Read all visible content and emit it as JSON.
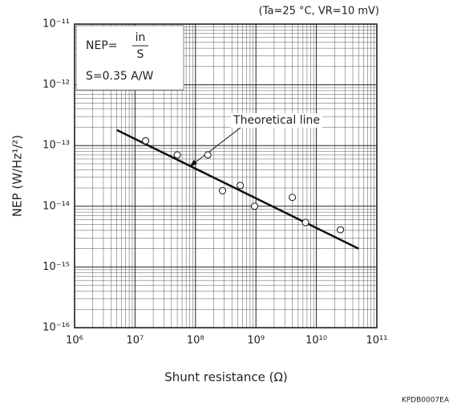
{
  "chart_data": {
    "type": "scatter",
    "x_scale": "log",
    "y_scale": "log",
    "grid": true,
    "minor_grid": true,
    "xlabel": "Shunt resistance (Ω)",
    "ylabel": "NEP (W/Hz¹/²)",
    "conditions": "(Ta=25 °C, VR=10 mV)",
    "formula": {
      "lhs": "NEP=",
      "numerator": "in",
      "denominator": "S",
      "sensitivity": "S=0.35 A/W"
    },
    "code": "KPDB0007EA",
    "xlim": [
      1000000,
      100000000000
    ],
    "ylim": [
      1e-16,
      1e-11
    ],
    "xticks": [
      {
        "value": 1000000,
        "label": "10⁶"
      },
      {
        "value": 10000000,
        "label": "10⁷"
      },
      {
        "value": 100000000,
        "label": "10⁸"
      },
      {
        "value": 1000000000,
        "label": "10⁹"
      },
      {
        "value": 10000000000,
        "label": "10¹⁰"
      },
      {
        "value": 100000000000,
        "label": "10¹¹"
      }
    ],
    "yticks": [
      {
        "value": 1e-16,
        "label": "10⁻¹⁶"
      },
      {
        "value": 1e-15,
        "label": "10⁻¹⁵"
      },
      {
        "value": 1e-14,
        "label": "10⁻¹⁴"
      },
      {
        "value": 1e-13,
        "label": "10⁻¹³"
      },
      {
        "value": 1e-12,
        "label": "10⁻¹²"
      },
      {
        "value": 1e-11,
        "label": "10⁻¹¹"
      }
    ],
    "x": [
      15000000,
      50000000,
      160000000,
      280000000,
      550000000,
      950000000,
      4000000000,
      6600000000,
      25000000000
    ],
    "values": [
      1.2e-13,
      7e-14,
      7e-14,
      1.8e-14,
      2.2e-14,
      1e-14,
      1.4e-14,
      5.4e-15,
      4.1e-15
    ],
    "color": "#ffffff",
    "theoretical_line": {
      "name": "Theoretical line",
      "x": [
        5000000,
        50000000000
      ],
      "values": [
        1.8e-13,
        2e-15
      ],
      "color": "#111111"
    }
  }
}
